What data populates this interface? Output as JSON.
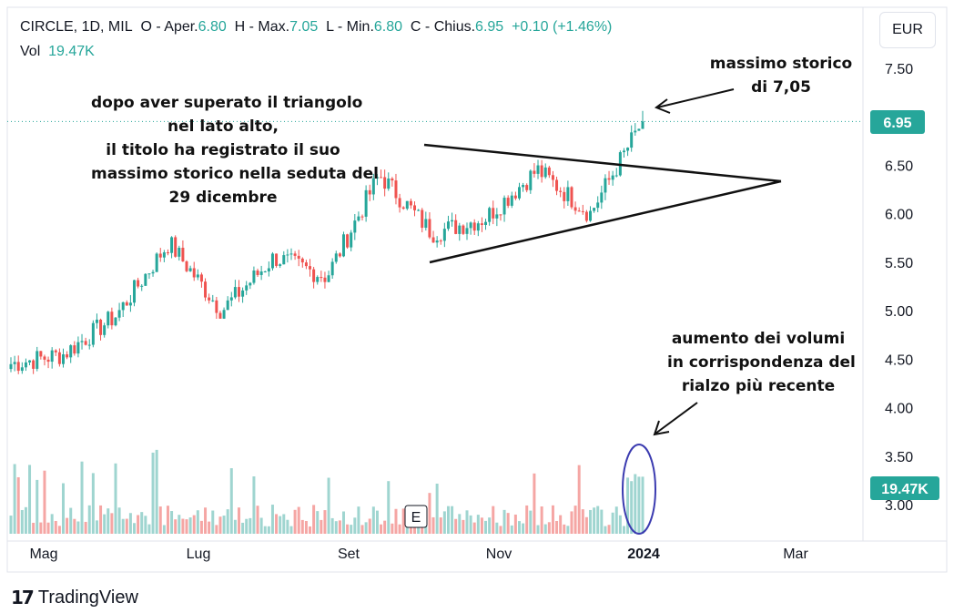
{
  "legend": {
    "symbol": "CIRCLE, 1D, MIL",
    "open_label": "O - Aper.",
    "open": "6.80",
    "high_label": "H - Max.",
    "high": "7.05",
    "low_label": "L - Min.",
    "low": "6.80",
    "close_label": "C - Chius.",
    "close": "6.95",
    "change": "+0.10 (+1.46%)",
    "vol_label": "Vol",
    "vol": "19.47K"
  },
  "currency_button": "EUR",
  "annotations": {
    "triangle_note": [
      "dopo aver superato il triangolo",
      "nel lato alto,",
      "il titolo ha registrato il suo",
      "massimo storico nella seduta del",
      "29 dicembre"
    ],
    "ath_note": [
      "massimo storico",
      "di 7,05"
    ],
    "volume_note": [
      "aumento dei volumi",
      "in corrispondenza del",
      "rialzo più recente"
    ]
  },
  "earnings_marker": "E",
  "footer": {
    "brand": "TradingView",
    "logo": "17"
  },
  "colors": {
    "up": "#26a69a",
    "down": "#ef5350",
    "vol_up": "#9fd5d0",
    "vol_down": "#f5a6a4",
    "badge": "#26a69a",
    "ellipse": "#3b3bb0"
  },
  "chart_data": {
    "type": "candlestick",
    "title": "",
    "y_axis": {
      "ticks": [
        7.5,
        7.0,
        6.5,
        6.0,
        5.5,
        5.0,
        4.5,
        4.0,
        3.5,
        3.0
      ],
      "tick_labels": [
        "7.50",
        "7.00",
        "6.50",
        "6.00",
        "5.50",
        "5.00",
        "4.50",
        "4.00",
        "3.50",
        "3.00"
      ],
      "range": [
        2.7,
        7.8
      ]
    },
    "x_axis": {
      "tick_labels": [
        "Mag",
        "Lug",
        "Set",
        "Nov",
        "2024",
        "Mar"
      ]
    },
    "last_price": 6.95,
    "last_price_label": "6.95",
    "last_volume_label": "19.47K",
    "price_checkpoints": [
      {
        "period": "Mag start",
        "close": 4.45
      },
      {
        "period": "Mag mid",
        "close": 4.55
      },
      {
        "period": "Lug start",
        "close": 4.95
      },
      {
        "period": "Lug mid",
        "close": 5.7
      },
      {
        "period": "Lug end",
        "close": 5.0
      },
      {
        "period": "Set start",
        "close": 5.55
      },
      {
        "period": "Set end",
        "close": 5.35
      },
      {
        "period": "Ott start",
        "close": 6.4
      },
      {
        "period": "Ott mid",
        "close": 5.8
      },
      {
        "period": "Nov",
        "close": 5.95
      },
      {
        "period": "Dic start",
        "close": 6.45
      },
      {
        "period": "Dic mid",
        "close": 6.0
      },
      {
        "period": "2024",
        "close": 6.95
      }
    ],
    "all_time_high": 7.05,
    "triangle": {
      "upper_line": [
        {
          "period": "Ott start",
          "price": 6.72
        },
        {
          "period": "Gen end",
          "price": 6.35
        }
      ],
      "lower_line": [
        {
          "period": "Set end",
          "price": 5.5
        },
        {
          "period": "Gen end",
          "price": 6.35
        }
      ]
    }
  }
}
